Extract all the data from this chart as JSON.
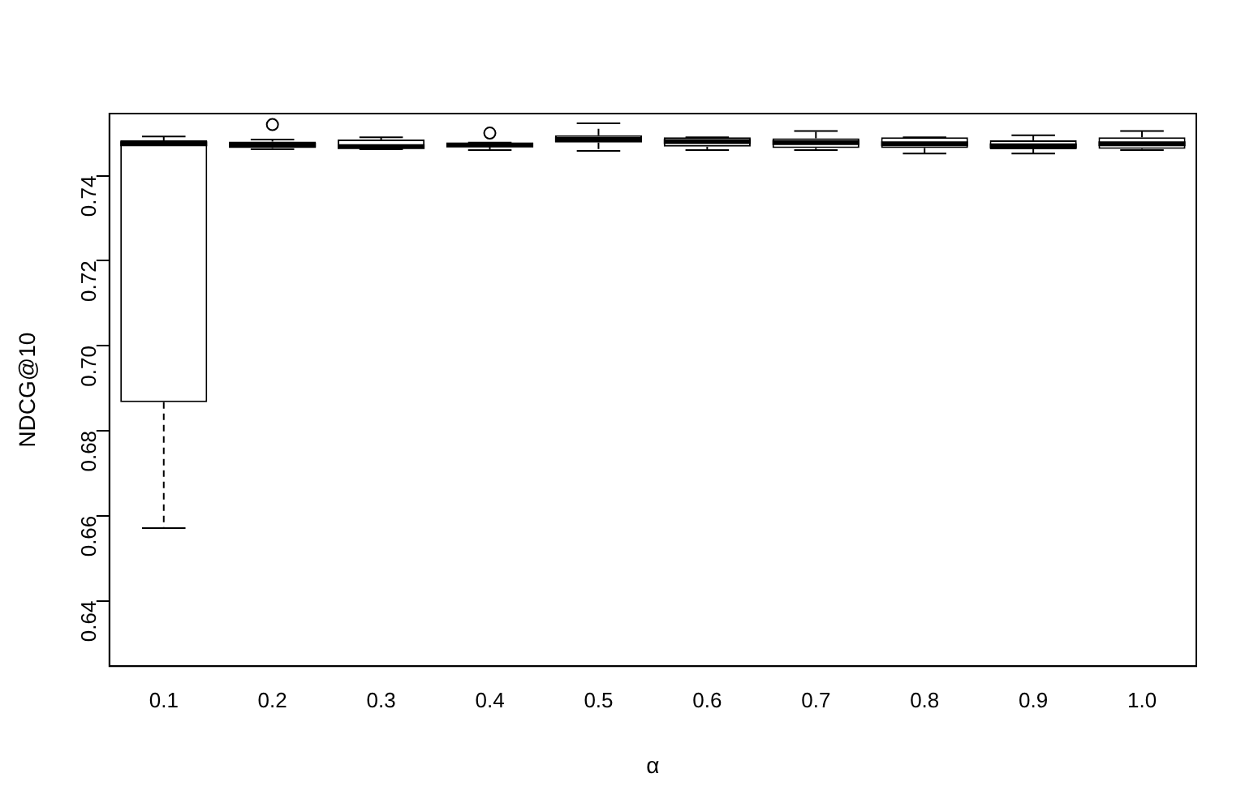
{
  "chart_data": {
    "type": "box",
    "xlabel": "α",
    "ylabel": "NDCG@10",
    "categories": [
      "0.1",
      "0.2",
      "0.3",
      "0.4",
      "0.5",
      "0.6",
      "0.7",
      "0.8",
      "0.9",
      "1.0"
    ],
    "ylim": [
      0.6246,
      0.7546
    ],
    "yticks": [
      {
        "value": 0.64,
        "label": "0.64"
      },
      {
        "value": 0.66,
        "label": "0.66"
      },
      {
        "value": 0.68,
        "label": "0.68"
      },
      {
        "value": 0.7,
        "label": "0.70"
      },
      {
        "value": 0.72,
        "label": "0.72"
      },
      {
        "value": 0.74,
        "label": "0.74"
      }
    ],
    "color": "#000000",
    "grid": false,
    "legend": false,
    "boxes": [
      {
        "low": 0.6571,
        "q1": 0.6867,
        "median": 0.7475,
        "q3": 0.7483,
        "high": 0.7492
      },
      {
        "low": 0.7462,
        "q1": 0.7465,
        "median": 0.7472,
        "q3": 0.748,
        "high": 0.7485,
        "outliers": [
          0.752
        ]
      },
      {
        "low": 0.7462,
        "q1": 0.7465,
        "median": 0.7468,
        "q3": 0.7485,
        "high": 0.749
      },
      {
        "low": 0.746,
        "q1": 0.7468,
        "median": 0.7472,
        "q3": 0.7478,
        "high": 0.7478,
        "outliers": [
          0.75
        ]
      },
      {
        "low": 0.7458,
        "q1": 0.7478,
        "median": 0.7485,
        "q3": 0.7495,
        "high": 0.7523
      },
      {
        "low": 0.746,
        "q1": 0.7468,
        "median": 0.748,
        "q3": 0.749,
        "high": 0.749
      },
      {
        "low": 0.746,
        "q1": 0.7465,
        "median": 0.7478,
        "q3": 0.7488,
        "high": 0.7505
      },
      {
        "low": 0.7452,
        "q1": 0.7465,
        "median": 0.7475,
        "q3": 0.749,
        "high": 0.749
      },
      {
        "low": 0.7452,
        "q1": 0.7462,
        "median": 0.747,
        "q3": 0.7483,
        "high": 0.7495
      },
      {
        "low": 0.746,
        "q1": 0.7463,
        "median": 0.7475,
        "q3": 0.749,
        "high": 0.7505
      }
    ]
  }
}
